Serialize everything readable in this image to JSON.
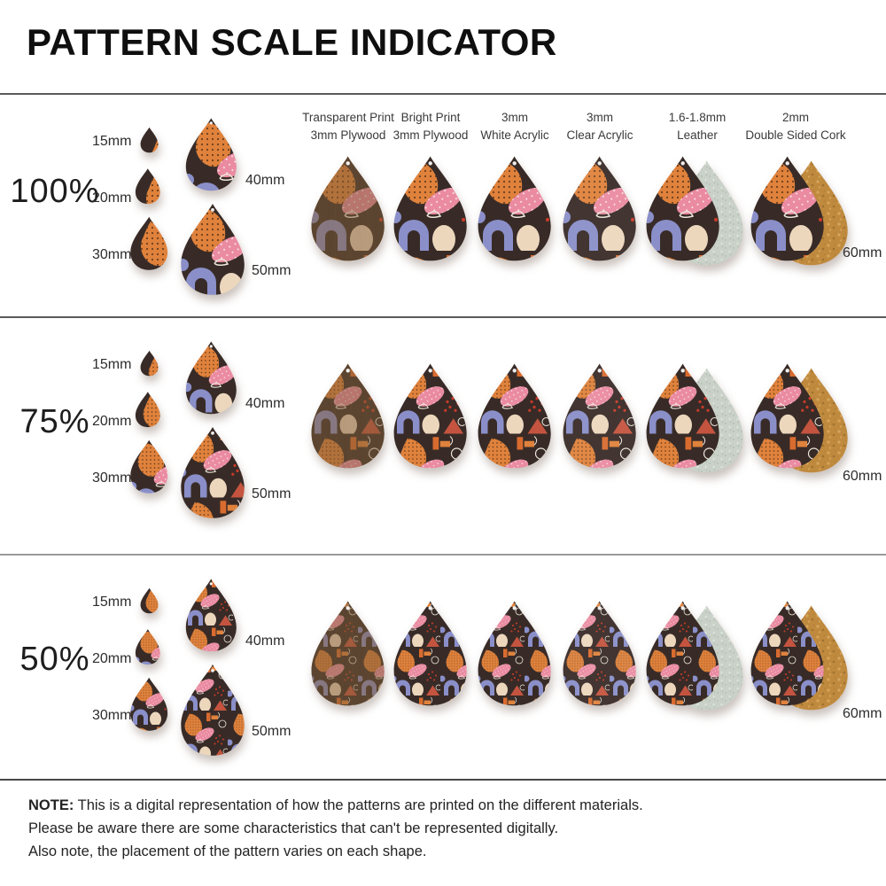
{
  "title": "PATTERN SCALE INDICATOR",
  "column_headers": [
    {
      "line1": "Transparent Print",
      "line2": "3mm Plywood"
    },
    {
      "line1": "Bright Print",
      "line2": "3mm Plywood"
    },
    {
      "line1": "3mm",
      "line2": "White Acrylic"
    },
    {
      "line1": "3mm",
      "line2": "Clear Acrylic"
    },
    {
      "line1": "1.6-1.8mm",
      "line2": "Leather"
    },
    {
      "line1": "2mm",
      "line2": "Double Sided Cork"
    }
  ],
  "rows": [
    {
      "scale": "100%",
      "sizes": {
        "s15": "15mm",
        "s20": "20mm",
        "s30": "30mm",
        "s40": "40mm",
        "s50": "50mm",
        "s60": "60mm"
      }
    },
    {
      "scale": "75%",
      "sizes": {
        "s15": "15mm",
        "s20": "20mm",
        "s30": "30mm",
        "s40": "40mm",
        "s50": "50mm",
        "s60": "60mm"
      }
    },
    {
      "scale": "50%",
      "sizes": {
        "s15": "15mm",
        "s20": "20mm",
        "s30": "30mm",
        "s40": "40mm",
        "s50": "50mm",
        "s60": "60mm"
      }
    }
  ],
  "note": {
    "label": "NOTE:",
    "line1": "This is a digital representation of how the patterns are printed on the different materials.",
    "line2": "Please be aware there are some characteristics that can't be represented digitally.",
    "line3": "Also note, the placement of the pattern varies on each shape."
  },
  "pattern_scales": [
    "100%",
    "75%",
    "50%"
  ],
  "colors": {
    "pattern_background": "#382b27",
    "orange": "#e0823c",
    "pink": "#ea8ba1",
    "periwinkle": "#8a8fc9",
    "cream": "#ecd7bd",
    "rust": "#c4543f",
    "red_marks": "#c93b28",
    "white_lines": "#ece6da",
    "plywood": "#8f6a42",
    "leather_back": "#c9d1c8",
    "cork_back": "#c08a3e",
    "separator": "#5a5a5a"
  }
}
